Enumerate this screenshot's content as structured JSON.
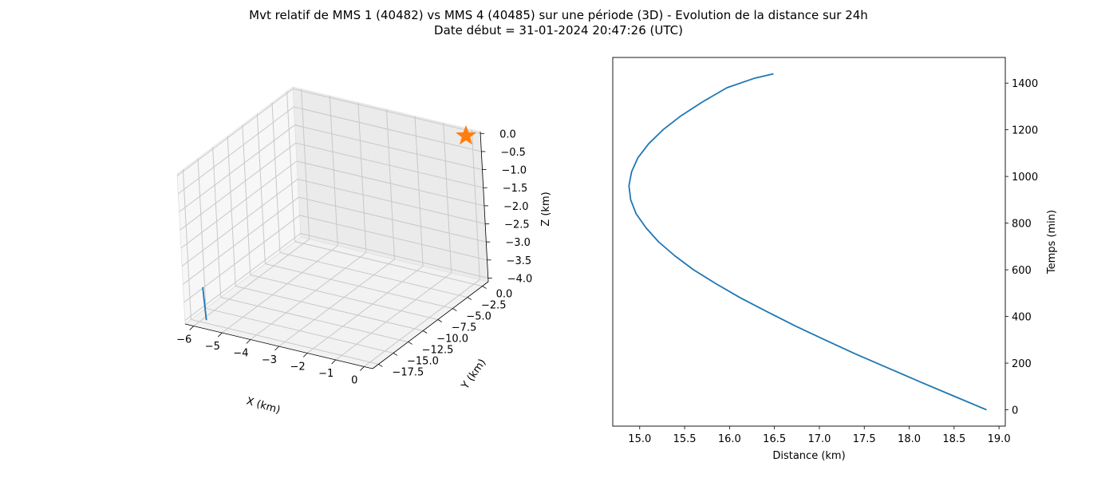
{
  "figure": {
    "title": "Mvt relatif de MMS 1 (40482) vs MMS 4 (40485) sur une période (3D) - Evolution de la distance sur 24h\nDate début = 31-01-2024 20:47:26 (UTC)"
  },
  "chart_data": [
    {
      "type": "line3d",
      "xlabel": "X (km)",
      "ylabel": "Y (km)",
      "zlabel": "Z (km)",
      "x_ticks": [
        -6,
        -5,
        -4,
        -3,
        -2,
        -1,
        0
      ],
      "y_ticks": [
        0.0,
        -2.5,
        -5.0,
        -7.5,
        -10.0,
        -12.5,
        -15.0,
        -17.5
      ],
      "z_ticks": [
        0.0,
        -0.5,
        -1.0,
        -1.5,
        -2.0,
        -2.5,
        -3.0,
        -3.5,
        -4.0
      ],
      "x_tick_labels": [
        "−6",
        "−5",
        "−4",
        "−3",
        "−2",
        "−1",
        "0"
      ],
      "y_tick_labels": [
        "0.0",
        "−2.5",
        "−5.0",
        "−7.5",
        "−10.0",
        "−12.5",
        "−15.0",
        "−17.5"
      ],
      "z_tick_labels": [
        "0.0",
        "−0.5",
        "−1.0",
        "−1.5",
        "−2.0",
        "−2.5",
        "−3.0",
        "−3.5",
        "−4.0"
      ],
      "xlim": [
        -6.3,
        0.3
      ],
      "ylim": [
        -18.5,
        1.0
      ],
      "zlim": [
        -4.1,
        0.05
      ],
      "grid": true,
      "series": [
        {
          "color": "#1f77b4",
          "x": [
            -5.8,
            -5.75,
            -5.7,
            -5.65,
            -5.6
          ],
          "y": [
            -17.6,
            -17.75,
            -17.9,
            -18.05,
            -18.2
          ],
          "z": [
            -3.1,
            -3.3,
            -3.5,
            -3.7,
            -3.9
          ]
        }
      ],
      "markers": [
        {
          "marker": "star",
          "color": "#ff7f0e",
          "x": 0.0,
          "y": 0.0,
          "z": 0.0
        }
      ]
    },
    {
      "type": "line",
      "xlabel": "Distance (km)",
      "ylabel": "Temps (min)",
      "x_ticks": [
        15.0,
        15.5,
        16.0,
        16.5,
        17.0,
        17.5,
        18.0,
        18.5,
        19.0
      ],
      "y_ticks": [
        0,
        200,
        400,
        600,
        800,
        1000,
        1200,
        1400
      ],
      "x_tick_labels": [
        "15.0",
        "15.5",
        "16.0",
        "16.5",
        "17.0",
        "17.5",
        "18.0",
        "18.5",
        "19.0"
      ],
      "y_tick_labels": [
        "0",
        "200",
        "400",
        "600",
        "800",
        "1000",
        "1200",
        "1400"
      ],
      "xlim": [
        14.7,
        19.07
      ],
      "ylim": [
        -70,
        1510
      ],
      "y_axis_side": "right",
      "grid": false,
      "series": [
        {
          "color": "#1f77b4",
          "x": [
            18.86,
            18.49,
            18.12,
            17.76,
            17.4,
            17.06,
            16.73,
            16.42,
            16.12,
            15.85,
            15.6,
            15.39,
            15.21,
            15.07,
            14.96,
            14.9,
            14.88,
            14.91,
            14.98,
            15.1,
            15.26,
            15.46,
            15.7,
            15.97,
            16.27,
            16.49
          ],
          "y": [
            0,
            60,
            120,
            180,
            240,
            300,
            360,
            420,
            480,
            540,
            600,
            660,
            720,
            780,
            840,
            900,
            960,
            1020,
            1080,
            1140,
            1200,
            1260,
            1320,
            1380,
            1420,
            1440
          ]
        }
      ]
    }
  ]
}
